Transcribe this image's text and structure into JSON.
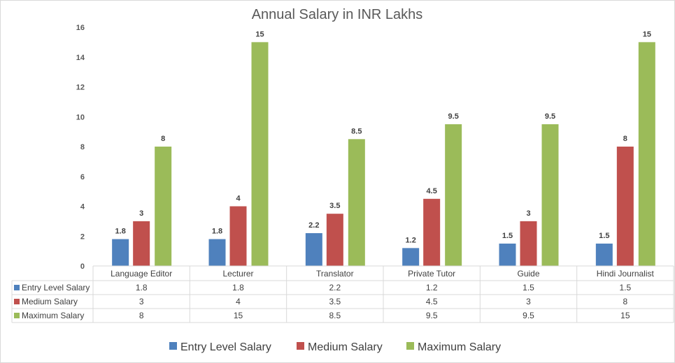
{
  "chart_data": {
    "type": "bar",
    "title": "Annual Salary in INR Lakhs",
    "xlabel": "",
    "ylabel": "",
    "ylim": [
      0,
      16
    ],
    "yticks": [
      0,
      2,
      4,
      6,
      8,
      10,
      12,
      14,
      16
    ],
    "grid": false,
    "legend_position": "bottom",
    "data_table": true,
    "categories": [
      "Language Editor",
      "Lecturer",
      "Translator",
      "Private Tutor",
      "Guide",
      "Hindi Journalist"
    ],
    "series": [
      {
        "name": "Entry Level Salary",
        "color": "#4f81bd",
        "values": [
          1.8,
          1.8,
          2.2,
          1.2,
          1.5,
          1.5
        ]
      },
      {
        "name": "Medium Salary",
        "color": "#c0504d",
        "values": [
          3,
          4,
          3.5,
          4.5,
          3,
          8
        ]
      },
      {
        "name": "Maximum Salary",
        "color": "#9bbb59",
        "values": [
          8,
          15,
          8.5,
          9.5,
          9.5,
          15
        ]
      }
    ]
  }
}
